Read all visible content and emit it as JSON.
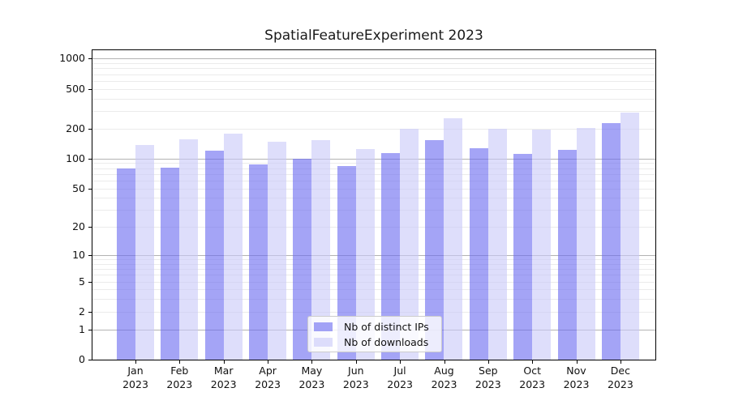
{
  "title": "SpatialFeatureExperiment 2023",
  "colors": {
    "bar_distinct_ips": "rgba(104,104,240,0.6)",
    "bar_downloads": "rgba(200,200,248,0.6)",
    "grid_major": "#b3b3b3",
    "grid_minor": "#ebebeb",
    "spine": "#000000",
    "legend_border": "#cccccc"
  },
  "chart_data": {
    "type": "bar",
    "title": "SpatialFeatureExperiment 2023",
    "categories": [
      "Jan",
      "Feb",
      "Mar",
      "Apr",
      "May",
      "Jun",
      "Jul",
      "Aug",
      "Sep",
      "Oct",
      "Nov",
      "Dec"
    ],
    "category_year": "2023",
    "series": [
      {
        "name": "Nb of distinct IPs",
        "color": "rgba(104,104,240,0.6)",
        "values": [
          79,
          81,
          119,
          88,
          100,
          84,
          113,
          152,
          128,
          111,
          122,
          228
        ]
      },
      {
        "name": "Nb of downloads",
        "color": "rgba(200,200,248,0.6)",
        "values": [
          137,
          155,
          177,
          147,
          154,
          125,
          199,
          252,
          199,
          196,
          201,
          291
        ]
      }
    ],
    "yscale": "log1p",
    "yticks": [
      0,
      1,
      2,
      5,
      10,
      20,
      50,
      100,
      200,
      500,
      1000
    ],
    "ymax_displayable": 1100,
    "grid": true,
    "legend_position": "lower-center"
  }
}
